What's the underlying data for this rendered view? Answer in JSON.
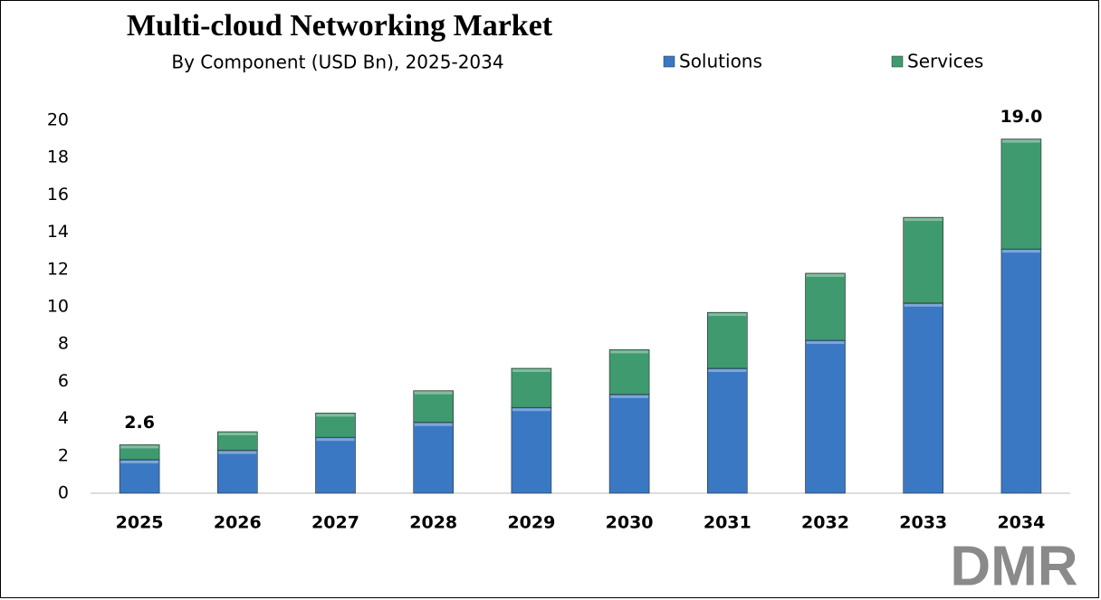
{
  "chart_data": {
    "type": "stacked_bar",
    "title": "Multi-cloud Networking Market",
    "subtitle": "By Component (USD Bn), 2025-2034",
    "categories": [
      "2025",
      "2026",
      "2027",
      "2028",
      "2029",
      "2030",
      "2031",
      "2032",
      "2033",
      "2034"
    ],
    "series": [
      {
        "name": "Solutions",
        "color": "#3a78c4",
        "values": [
          1.8,
          2.3,
          3.0,
          3.8,
          4.6,
          5.3,
          6.7,
          8.2,
          10.2,
          13.1
        ]
      },
      {
        "name": "Services",
        "color": "#3f9a6f",
        "values": [
          0.8,
          1.0,
          1.3,
          1.7,
          2.1,
          2.4,
          3.0,
          3.6,
          4.6,
          5.9
        ]
      }
    ],
    "totals": [
      2.6,
      null,
      null,
      null,
      null,
      null,
      null,
      null,
      null,
      19.0
    ],
    "total_labels": [
      "2.6",
      null,
      null,
      null,
      null,
      null,
      null,
      null,
      null,
      "19.0"
    ],
    "ylim": [
      0,
      20
    ],
    "yticks": [
      0,
      2,
      4,
      6,
      8,
      10,
      12,
      14,
      16,
      18,
      20
    ],
    "grid": false,
    "legend": "top",
    "logo": "DMR"
  }
}
